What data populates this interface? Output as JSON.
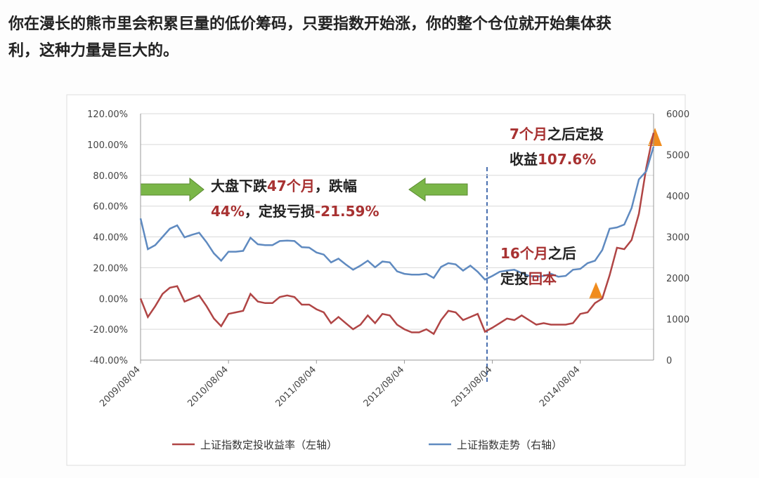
{
  "text_lines": [
    "你在漫长的熊市里会积累巨量的低价筹码，只要指数开始涨，你的整个仓位就开始集体获",
    "利，这种力量是巨大的。"
  ],
  "chart_data": {
    "type": "line",
    "categories": [
      "2009/08/04",
      null,
      null,
      null,
      null,
      null,
      null,
      null,
      null,
      null,
      null,
      null,
      "2010/08/04",
      null,
      null,
      null,
      null,
      null,
      null,
      null,
      null,
      null,
      null,
      null,
      "2011/08/04",
      null,
      null,
      null,
      null,
      null,
      null,
      null,
      null,
      null,
      null,
      null,
      "2012/08/04",
      null,
      null,
      null,
      null,
      null,
      null,
      null,
      null,
      null,
      null,
      null,
      "2013/08/04",
      null,
      null,
      null,
      null,
      null,
      null,
      null,
      null,
      null,
      null,
      null,
      "2014/08/04",
      null,
      null,
      null,
      null,
      null,
      null,
      null,
      null,
      null,
      null
    ],
    "series": [
      {
        "name": "上证指数定投收益率（左轴）",
        "color": "#b04545",
        "values": [
          0,
          -12,
          -5,
          3,
          7,
          8,
          -2,
          0,
          2,
          -5,
          -13,
          -18,
          -10,
          -9,
          -8,
          3,
          -2,
          -3,
          -3,
          1,
          2,
          1,
          -4,
          -4,
          -7,
          -9,
          -16,
          -12,
          -16,
          -20,
          -17,
          -11,
          -16,
          -10,
          -11,
          -17,
          -20,
          -22,
          -22,
          -20,
          -23,
          -14,
          -8,
          -9,
          -14,
          -12,
          -10,
          -21.59,
          -19,
          -16,
          -13,
          -14,
          -11,
          -14,
          -17,
          -16,
          -17,
          -17,
          -17,
          -16,
          -10,
          -9,
          -3,
          0,
          15,
          33,
          32,
          38,
          55,
          85,
          107.6
        ]
      },
      {
        "name": "上证指数走势（右轴）",
        "color": "#5f8ac0",
        "axis": "y2",
        "values": [
          3450,
          2700,
          2800,
          3000,
          3200,
          3280,
          2990,
          3050,
          3100,
          2870,
          2600,
          2420,
          2640,
          2640,
          2660,
          2980,
          2820,
          2800,
          2800,
          2900,
          2910,
          2900,
          2750,
          2740,
          2620,
          2570,
          2380,
          2470,
          2330,
          2200,
          2300,
          2420,
          2260,
          2400,
          2380,
          2160,
          2100,
          2080,
          2080,
          2100,
          2000,
          2270,
          2360,
          2330,
          2180,
          2300,
          2150,
          1960,
          2050,
          2150,
          2180,
          2200,
          2120,
          2050,
          2030,
          2050,
          2100,
          2030,
          2050,
          2200,
          2220,
          2360,
          2420,
          2680,
          3200,
          3230,
          3300,
          3700,
          4400,
          4600,
          5200
        ]
      }
    ],
    "ylim": [
      -40,
      120
    ],
    "yticks": [
      {
        "value": -40,
        "label": "-40.00%"
      },
      {
        "value": -20,
        "label": "-20.00%"
      },
      {
        "value": 0,
        "label": "0.00%"
      },
      {
        "value": 20,
        "label": "20.00%"
      },
      {
        "value": 40,
        "label": "40.00%"
      },
      {
        "value": 60,
        "label": "60.00%"
      },
      {
        "value": 80,
        "label": "80.00%"
      },
      {
        "value": 100,
        "label": "100.00%"
      },
      {
        "value": 120,
        "label": "120.00%"
      }
    ],
    "y2lim": [
      0,
      6000
    ],
    "y2ticks": [
      0,
      1000,
      2000,
      3000,
      4000,
      5000,
      6000
    ],
    "grid": true,
    "legend": "bottom",
    "annotations": [
      {
        "lines": [
          [
            {
              "text": "大盘下跌",
              "color": "#222222"
            },
            {
              "text": "47个月",
              "color": "#a83232"
            },
            {
              "text": "，跌幅",
              "color": "#222222"
            }
          ],
          [
            {
              "text": "44%",
              "color": "#a83232"
            },
            {
              "text": "，定投亏损",
              "color": "#222222"
            },
            {
              "text": "-21.59%",
              "color": "#a83232"
            }
          ]
        ]
      },
      {
        "lines": [
          [
            {
              "text": "7个月",
              "color": "#a83232"
            },
            {
              "text": "之后定投",
              "color": "#222222"
            }
          ],
          [
            {
              "text": "收益",
              "color": "#222222"
            },
            {
              "text": "107.6%",
              "color": "#a83232"
            }
          ]
        ]
      },
      {
        "lines": [
          [
            {
              "text": "16个月",
              "color": "#a83232"
            },
            {
              "text": "之后",
              "color": "#222222"
            }
          ],
          [
            {
              "text": "定投",
              "color": "#222222"
            },
            {
              "text": "回本",
              "color": "#a83232"
            }
          ]
        ]
      }
    ]
  }
}
